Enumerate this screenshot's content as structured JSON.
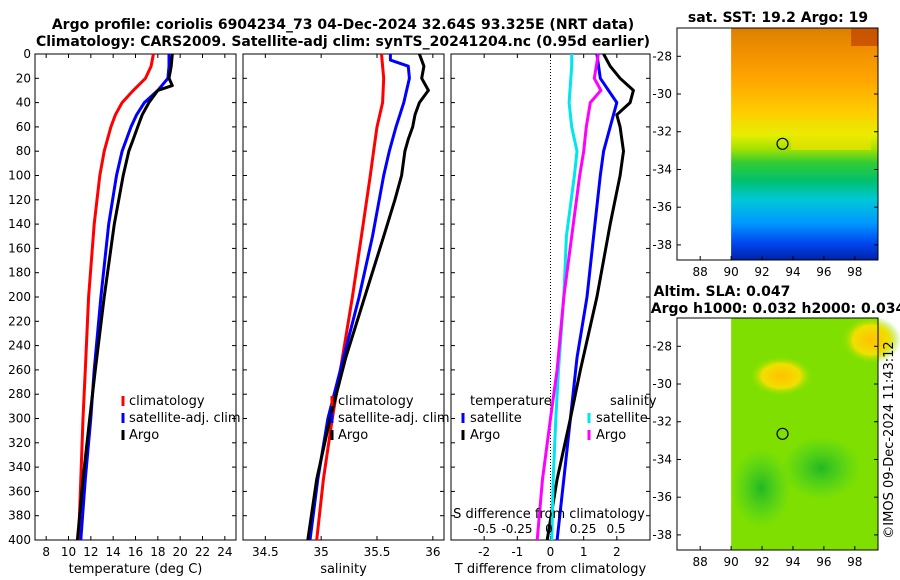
{
  "figure": {
    "title_line1": "Argo profile: coriolis 6904234_73 04-Dec-2024 32.64S 93.325E (NRT data)",
    "title_line2": "Climatology: CARS2009. Satellite-adj clim: synTS_20241204.nc (0.95d earlier)",
    "watermark": "©IMOS 09-Dec-2024 11:43:12"
  },
  "colors": {
    "climatology": "#ff0000",
    "satellite": "#0000ff",
    "argo": "#000000",
    "salinity_satellite": "#00e5ee",
    "salinity_argo": "#ff00ff"
  },
  "chart_data": [
    {
      "type": "line",
      "name": "temperature-profile",
      "xlabel": "temperature (deg C)",
      "ylabel": "",
      "xlim": [
        7,
        25
      ],
      "ylim": [
        400,
        0
      ],
      "xticks": [
        8,
        10,
        12,
        14,
        16,
        18,
        20,
        22,
        24
      ],
      "yticks": [
        0,
        20,
        40,
        60,
        80,
        100,
        120,
        140,
        160,
        180,
        200,
        220,
        240,
        260,
        280,
        300,
        320,
        340,
        360,
        380,
        400
      ],
      "legend": [
        "climatology",
        "satellite-adj. clim",
        "Argo"
      ],
      "series": [
        {
          "name": "climatology",
          "color_key": "climatology",
          "depth": [
            0,
            10,
            20,
            30,
            40,
            50,
            60,
            80,
            100,
            140,
            200,
            260,
            300,
            350,
            400
          ],
          "values": [
            17.6,
            17.4,
            16.9,
            15.8,
            14.8,
            14.2,
            13.8,
            13.2,
            12.8,
            12.3,
            11.8,
            11.5,
            11.3,
            11.1,
            10.9
          ]
        },
        {
          "name": "satellite-adj. clim",
          "color_key": "satellite",
          "depth": [
            0,
            10,
            20,
            30,
            40,
            50,
            60,
            80,
            100,
            140,
            200,
            260,
            300,
            350,
            400
          ],
          "values": [
            19.0,
            19.0,
            18.9,
            18.0,
            16.8,
            16.1,
            15.6,
            14.8,
            14.3,
            13.6,
            12.9,
            12.3,
            12.0,
            11.5,
            11.1
          ]
        },
        {
          "name": "Argo",
          "color_key": "argo",
          "depth": [
            0,
            10,
            20,
            26,
            30,
            40,
            50,
            60,
            70,
            80,
            100,
            140,
            200,
            260,
            300,
            350,
            400
          ],
          "values": [
            19.3,
            19.2,
            19.0,
            19.3,
            18.0,
            17.2,
            16.6,
            16.2,
            15.8,
            15.4,
            14.9,
            14.1,
            13.2,
            12.4,
            11.9,
            11.3,
            10.8
          ]
        }
      ]
    },
    {
      "type": "line",
      "name": "salinity-profile",
      "xlabel": "salinity",
      "ylabel": "",
      "xlim": [
        34.3,
        36.1
      ],
      "ylim": [
        400,
        0
      ],
      "xticks": [
        34.5,
        35,
        35.5,
        36
      ],
      "legend": [
        "climatology",
        "satellite-adj. clim",
        "Argo"
      ],
      "series": [
        {
          "name": "climatology",
          "color_key": "climatology",
          "depth": [
            0,
            20,
            40,
            60,
            80,
            100,
            150,
            200,
            250,
            300,
            350,
            400
          ],
          "values": [
            35.54,
            35.56,
            35.55,
            35.5,
            35.47,
            35.44,
            35.36,
            35.28,
            35.19,
            35.1,
            35.02,
            34.96
          ]
        },
        {
          "name": "satellite-adj. clim",
          "color_key": "satellite",
          "depth": [
            0,
            5,
            10,
            20,
            40,
            60,
            80,
            100,
            150,
            200,
            250,
            300,
            350,
            400
          ],
          "values": [
            35.62,
            35.62,
            35.78,
            35.79,
            35.74,
            35.67,
            35.61,
            35.56,
            35.46,
            35.34,
            35.2,
            35.06,
            34.97,
            34.9
          ]
        },
        {
          "name": "Argo",
          "color_key": "argo",
          "depth": [
            0,
            10,
            20,
            30,
            40,
            50,
            60,
            70,
            80,
            100,
            120,
            150,
            200,
            250,
            300,
            350,
            400
          ],
          "values": [
            35.88,
            35.92,
            35.9,
            35.96,
            35.88,
            35.84,
            35.82,
            35.78,
            35.75,
            35.72,
            35.66,
            35.56,
            35.39,
            35.22,
            35.08,
            34.96,
            34.88
          ]
        }
      ]
    },
    {
      "type": "line",
      "name": "difference-profile",
      "xlabel": "T difference from climatology",
      "top_label": "S difference from climatology",
      "xlim": [
        -3,
        3
      ],
      "ylim": [
        400,
        0
      ],
      "xticks": [
        -2,
        -1,
        0,
        1,
        2
      ],
      "top_xticks": [
        "-0.5",
        "-0.25",
        "0",
        "0.25",
        "0.5"
      ],
      "legend_temperature_header": "temperature",
      "legend_salinity_header": "salinity",
      "legend_temperature": [
        "satellite",
        "Argo"
      ],
      "legend_salinity": [
        "satellite",
        "Argo"
      ],
      "series": [
        {
          "name": "T satellite",
          "color_key": "satellite",
          "depth": [
            0,
            20,
            40,
            60,
            80,
            100,
            150,
            200,
            250,
            300,
            350,
            400
          ],
          "values": [
            1.4,
            1.5,
            2.0,
            1.8,
            1.6,
            1.5,
            1.3,
            1.1,
            0.8,
            0.6,
            0.4,
            0.2
          ]
        },
        {
          "name": "T Argo",
          "color_key": "argo",
          "depth": [
            0,
            10,
            20,
            30,
            40,
            50,
            60,
            80,
            100,
            140,
            200,
            260,
            300,
            350,
            400
          ],
          "values": [
            1.6,
            1.8,
            2.1,
            2.5,
            2.4,
            2.0,
            2.1,
            2.2,
            2.1,
            1.8,
            1.4,
            0.9,
            0.6,
            0.2,
            -0.1
          ]
        },
        {
          "name": "S satellite",
          "color_key": "salinity_satellite",
          "depth": [
            0,
            10,
            40,
            60,
            80,
            100,
            150,
            200,
            260,
            300,
            350,
            400
          ],
          "values": [
            0.16,
            0.16,
            0.14,
            0.16,
            0.2,
            0.18,
            0.12,
            0.1,
            0.06,
            0.04,
            0.02,
            0.01
          ]
        },
        {
          "name": "S Argo",
          "color_key": "salinity_argo",
          "depth": [
            0,
            20,
            30,
            40,
            60,
            80,
            100,
            150,
            200,
            260,
            300,
            350,
            400
          ],
          "values": [
            0.36,
            0.33,
            0.38,
            0.3,
            0.27,
            0.25,
            0.22,
            0.16,
            0.1,
            0.05,
            0.0,
            -0.06,
            -0.1
          ]
        }
      ]
    },
    {
      "type": "heatmap",
      "name": "sst-map",
      "title": "sat. SST: 19.2 Argo: 19",
      "xticks": [
        88,
        90,
        92,
        94,
        96,
        98
      ],
      "yticks": [
        -28,
        -30,
        -32,
        -34,
        -36,
        -38
      ],
      "xlim": [
        86.5,
        99.5
      ],
      "ylim": [
        -38.8,
        -26.5
      ],
      "data_xmin": 90.0,
      "marker": {
        "lon": 93.325,
        "lat": -32.64
      }
    },
    {
      "type": "heatmap",
      "name": "sla-map",
      "title_line1": "Altim. SLA: 0.047",
      "title_line2": "Argo h1000: 0.032 h2000: 0.034",
      "xticks": [
        88,
        90,
        92,
        94,
        96,
        98
      ],
      "yticks": [
        -28,
        -30,
        -32,
        -34,
        -36,
        -38
      ],
      "xlim": [
        86.5,
        99.5
      ],
      "ylim": [
        -38.8,
        -26.5
      ],
      "data_xmin": 90.0,
      "marker": {
        "lon": 93.325,
        "lat": -32.64
      }
    }
  ]
}
